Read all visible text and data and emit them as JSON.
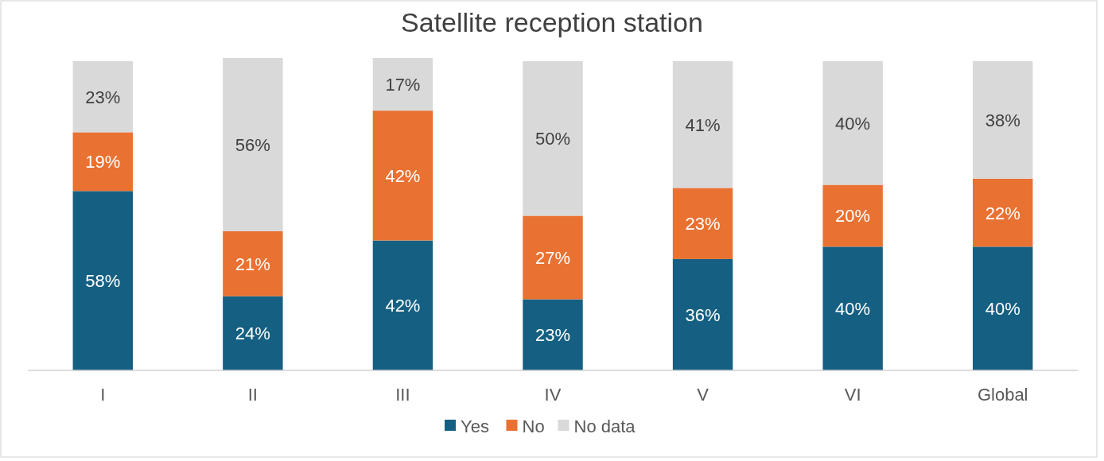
{
  "chart_data": {
    "type": "bar",
    "title": "Satellite reception station",
    "stacked": true,
    "legend": "bottom",
    "categories": [
      "I",
      "II",
      "III",
      "IV",
      "V",
      "VI",
      "Global"
    ],
    "series": [
      {
        "name": "Yes",
        "color": "#156082",
        "values": [
          58,
          24,
          42,
          23,
          36,
          40,
          40
        ],
        "value_labels": [
          "58%",
          "24%",
          "42%",
          "23%",
          "36%",
          "40%",
          "40%"
        ]
      },
      {
        "name": "No",
        "color": "#e97132",
        "values": [
          19,
          21,
          42,
          27,
          23,
          20,
          22
        ],
        "value_labels": [
          "19%",
          "21%",
          "42%",
          "27%",
          "23%",
          "20%",
          "22%"
        ]
      },
      {
        "name": "No data",
        "color": "#d9d9d9",
        "values": [
          23,
          56,
          17,
          50,
          41,
          40,
          38
        ],
        "value_labels": [
          "23%",
          "56%",
          "17%",
          "50%",
          "41%",
          "40%",
          "38%"
        ]
      }
    ]
  }
}
